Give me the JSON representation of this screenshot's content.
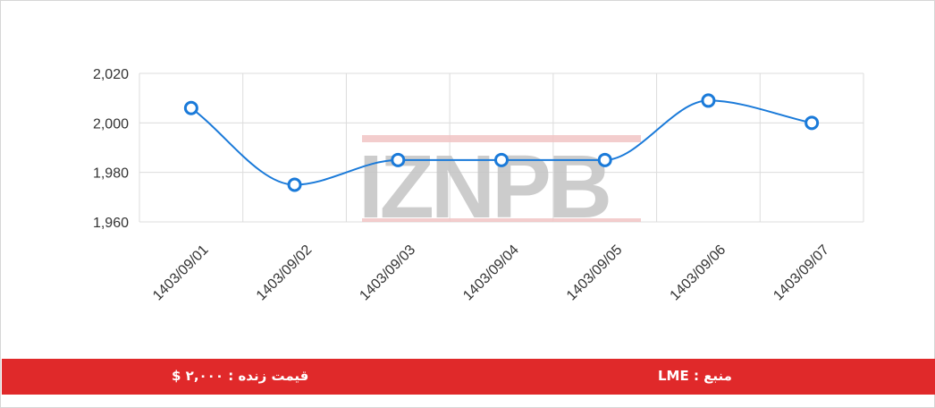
{
  "chart_data": {
    "type": "line",
    "categories": [
      "1403/09/01",
      "1403/09/02",
      "1403/09/03",
      "1403/09/04",
      "1403/09/05",
      "1403/09/06",
      "1403/09/07"
    ],
    "series": [
      {
        "values": [
          2006,
          1975,
          1985,
          1985,
          1985,
          2009,
          2000
        ],
        "color": "#1a7ad9"
      }
    ],
    "title": "",
    "xlabel": "",
    "ylabel": "",
    "ylim": [
      1960,
      2020
    ],
    "yticks": [
      1960,
      1980,
      2000,
      2020
    ],
    "ytick_labels": [
      "1,960",
      "1,980",
      "2,000",
      "2,020"
    ],
    "grid": true,
    "legend": "none"
  },
  "watermark": {
    "text": "IZNPB"
  },
  "footer": {
    "live_price": "قیمت زنده : ۲,۰۰۰ $",
    "source": "منبع : LME",
    "background_color": "#e0292a"
  },
  "colors": {
    "grid": "#dcdcdc",
    "text": "#333333",
    "watermark_gray": "#c4c4c4",
    "watermark_red": "#e0292a"
  }
}
